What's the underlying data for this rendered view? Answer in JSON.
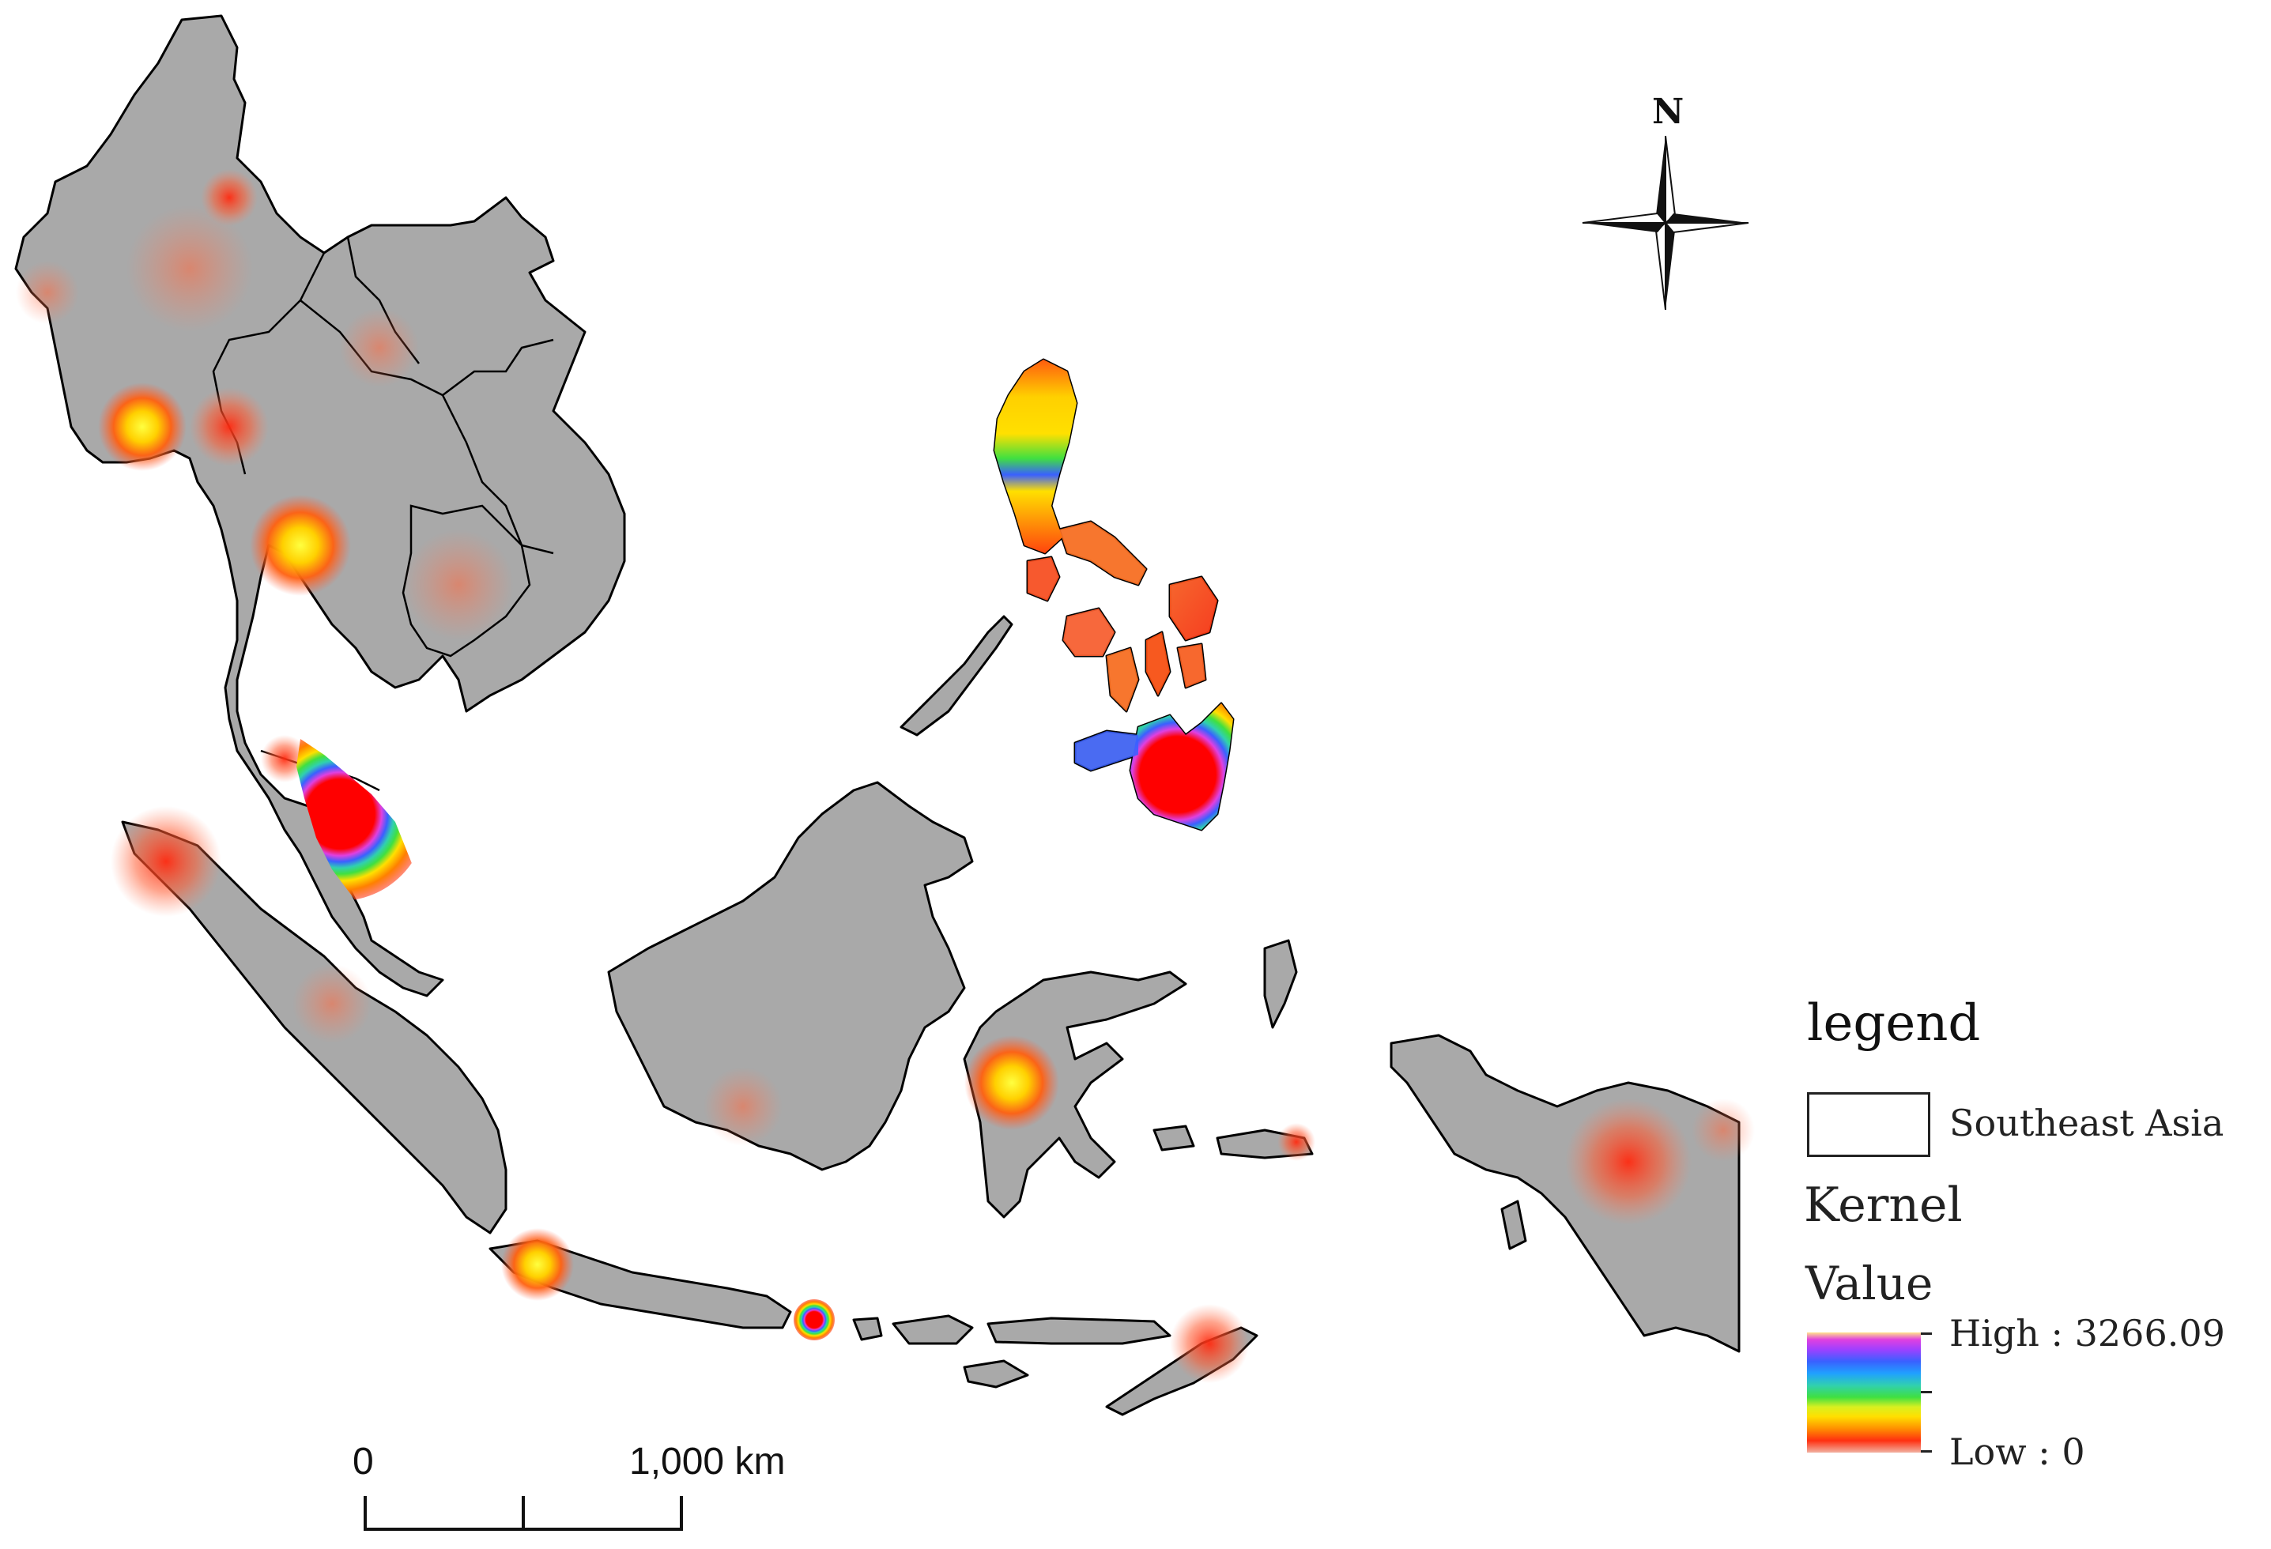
{
  "legend": {
    "title": "legend",
    "layer_label": "Southeast Asia",
    "kernel_title": "Kernel",
    "value_title": "Value",
    "high_label": "High : 3266.09",
    "low_label": "Low : 0"
  },
  "scale_bar": {
    "zero_label": "0",
    "distance_label": "1,000 km"
  },
  "north_arrow": {
    "label": "N",
    "icon": "north-arrow-icon"
  },
  "colors": {
    "land": "#a9a9a9",
    "hotspot_low": "#ff3010",
    "hotspot_mid": "#ffe000",
    "hotspot_high": "#3a60ff"
  }
}
